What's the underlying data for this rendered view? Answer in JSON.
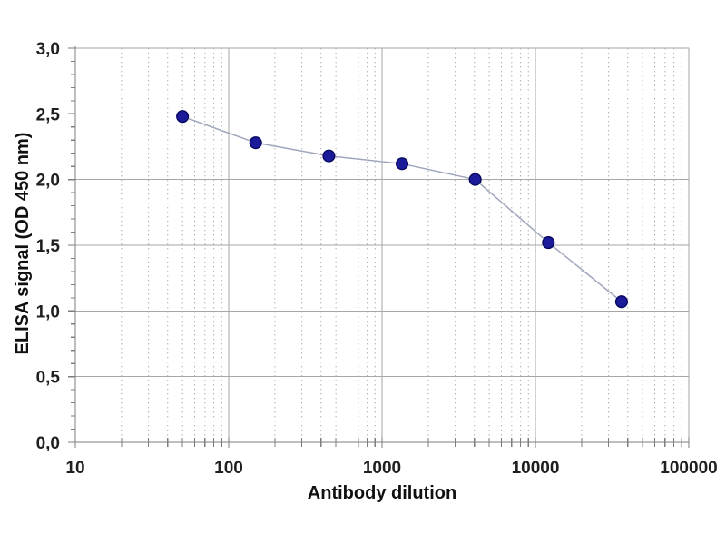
{
  "page": {
    "background_color": "#ffffff"
  },
  "chart_data": {
    "type": "line",
    "title": "",
    "xlabel": "Antibody dilution",
    "ylabel": "ELISA signal (OD 450 nm)",
    "x_scale": "log",
    "xlim": [
      10,
      100000
    ],
    "ylim": [
      0,
      3
    ],
    "x_tick_values": [
      10,
      100,
      1000,
      10000,
      100000
    ],
    "x_tick_labels": [
      "10",
      "100",
      "1000",
      "10000",
      "100000"
    ],
    "y_tick_values": [
      0,
      0.5,
      1,
      1.5,
      2,
      2.5,
      3
    ],
    "y_tick_labels": [
      "0,0",
      "0,5",
      "1,0",
      "1,5",
      "2,0",
      "2,5",
      "3,0"
    ],
    "y_minor_tick_step": 0.1,
    "grid": {
      "horizontal_major": true,
      "vertical_major_decades": true,
      "vertical_minor_dotted": true,
      "legend": "none"
    },
    "series": [
      {
        "name": "ELISA signal",
        "x": [
          50,
          150,
          450,
          1350,
          4050,
          12150,
          36450
        ],
        "y": [
          2.48,
          2.28,
          2.18,
          2.12,
          2.0,
          1.52,
          1.07
        ],
        "marker": "circle",
        "marker_color": "#1b1b99",
        "marker_edge_color": "#05055e",
        "line_color": "#9fa6bc"
      }
    ],
    "colors": {
      "grid_major": "#a6a6a6",
      "grid_minor": "#ababab",
      "axis": "#7d7d7d",
      "tick_text": "#1f1f1f"
    }
  }
}
